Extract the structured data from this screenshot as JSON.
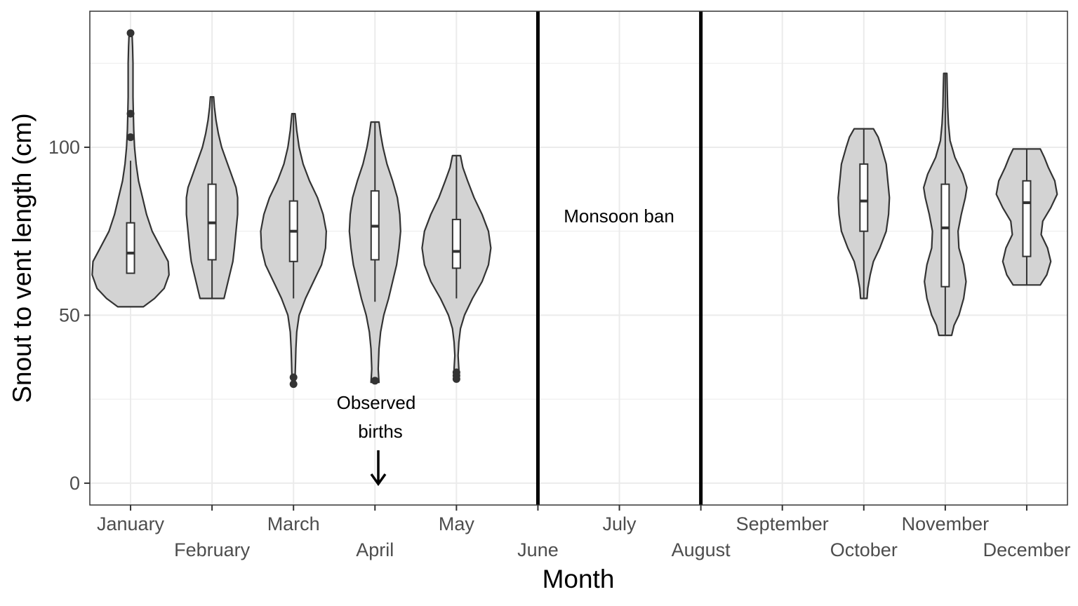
{
  "chart_data": {
    "type": "violin",
    "title": "",
    "xlabel": "Month",
    "ylabel": "Snout to vent length (cm)",
    "ylim": [
      -6.5,
      140.5
    ],
    "yticks": [
      0,
      50,
      100
    ],
    "grid": true,
    "categories": [
      "January",
      "February",
      "March",
      "April",
      "May",
      "June",
      "July",
      "August",
      "September",
      "October",
      "November",
      "December"
    ],
    "violin_fill": "#d3d3d3",
    "outline_color": "#333333",
    "months": [
      {
        "name": "January",
        "min": 52.5,
        "max": 133,
        "whisker_low": 62.5,
        "q1": 62.5,
        "median": 68.5,
        "q3": 77.5,
        "whisker_high": 96,
        "outliers": [
          103,
          110,
          134
        ],
        "density": [
          [
            52.5,
            0.16
          ],
          [
            55,
            0.3
          ],
          [
            58,
            0.42
          ],
          [
            62,
            0.48
          ],
          [
            66,
            0.47
          ],
          [
            70,
            0.38
          ],
          [
            75,
            0.27
          ],
          [
            80,
            0.2
          ],
          [
            85,
            0.15
          ],
          [
            90,
            0.1
          ],
          [
            95,
            0.07
          ],
          [
            100,
            0.05
          ],
          [
            105,
            0.04
          ],
          [
            110,
            0.035
          ],
          [
            115,
            0.03
          ],
          [
            120,
            0.03
          ],
          [
            125,
            0.03
          ],
          [
            130,
            0.025
          ],
          [
            133,
            0.02
          ]
        ]
      },
      {
        "name": "February",
        "min": 55,
        "max": 115,
        "whisker_low": 55,
        "q1": 66.5,
        "median": 77.5,
        "q3": 89,
        "whisker_high": 115,
        "outliers": [],
        "density": [
          [
            55,
            0.15
          ],
          [
            58,
            0.18
          ],
          [
            62,
            0.22
          ],
          [
            66,
            0.26
          ],
          [
            70,
            0.28
          ],
          [
            75,
            0.3
          ],
          [
            80,
            0.32
          ],
          [
            85,
            0.32
          ],
          [
            88,
            0.3
          ],
          [
            92,
            0.24
          ],
          [
            96,
            0.18
          ],
          [
            100,
            0.12
          ],
          [
            104,
            0.08
          ],
          [
            108,
            0.05
          ],
          [
            112,
            0.03
          ],
          [
            115,
            0.02
          ]
        ]
      },
      {
        "name": "March",
        "min": 29,
        "max": 110,
        "whisker_low": 55,
        "q1": 66,
        "median": 75,
        "q3": 84,
        "whisker_high": 110,
        "outliers": [
          29.5,
          31.5
        ],
        "density": [
          [
            29,
            0.02
          ],
          [
            32,
            0.02
          ],
          [
            36,
            0.025
          ],
          [
            40,
            0.03
          ],
          [
            45,
            0.04
          ],
          [
            50,
            0.07
          ],
          [
            55,
            0.15
          ],
          [
            60,
            0.25
          ],
          [
            65,
            0.35
          ],
          [
            70,
            0.4
          ],
          [
            75,
            0.41
          ],
          [
            80,
            0.37
          ],
          [
            85,
            0.3
          ],
          [
            90,
            0.2
          ],
          [
            95,
            0.12
          ],
          [
            100,
            0.07
          ],
          [
            105,
            0.04
          ],
          [
            110,
            0.02
          ]
        ]
      },
      {
        "name": "April",
        "min": 30,
        "max": 107.5,
        "whisker_low": 54,
        "q1": 66.5,
        "median": 76.5,
        "q3": 87,
        "whisker_high": 107.5,
        "outliers": [
          30.5
        ],
        "density": [
          [
            30,
            0.05
          ],
          [
            34,
            0.04
          ],
          [
            40,
            0.05
          ],
          [
            45,
            0.07
          ],
          [
            50,
            0.11
          ],
          [
            55,
            0.17
          ],
          [
            60,
            0.22
          ],
          [
            65,
            0.27
          ],
          [
            70,
            0.3
          ],
          [
            75,
            0.32
          ],
          [
            80,
            0.31
          ],
          [
            85,
            0.28
          ],
          [
            90,
            0.22
          ],
          [
            95,
            0.15
          ],
          [
            100,
            0.1
          ],
          [
            104,
            0.07
          ],
          [
            107.5,
            0.05
          ]
        ]
      },
      {
        "name": "May",
        "min": 30.5,
        "max": 97.5,
        "whisker_low": 55,
        "q1": 64,
        "median": 69,
        "q3": 78.5,
        "whisker_high": 97.5,
        "outliers": [
          31,
          32,
          33
        ],
        "density": [
          [
            30.5,
            0.03
          ],
          [
            34,
            0.03
          ],
          [
            38,
            0.02
          ],
          [
            42,
            0.03
          ],
          [
            46,
            0.05
          ],
          [
            50,
            0.1
          ],
          [
            55,
            0.2
          ],
          [
            60,
            0.32
          ],
          [
            65,
            0.4
          ],
          [
            70,
            0.43
          ],
          [
            75,
            0.4
          ],
          [
            80,
            0.32
          ],
          [
            85,
            0.22
          ],
          [
            90,
            0.14
          ],
          [
            94,
            0.08
          ],
          [
            97.5,
            0.05
          ]
        ]
      },
      {
        "name": "October",
        "min": 55,
        "max": 105.5,
        "whisker_low": 55,
        "q1": 75,
        "median": 84,
        "q3": 95,
        "whisker_high": 105.5,
        "outliers": [],
        "density": [
          [
            55,
            0.04
          ],
          [
            58,
            0.05
          ],
          [
            62,
            0.08
          ],
          [
            66,
            0.12
          ],
          [
            70,
            0.2
          ],
          [
            75,
            0.28
          ],
          [
            80,
            0.31
          ],
          [
            85,
            0.32
          ],
          [
            90,
            0.3
          ],
          [
            95,
            0.28
          ],
          [
            100,
            0.22
          ],
          [
            103,
            0.18
          ],
          [
            105.5,
            0.12
          ]
        ]
      },
      {
        "name": "November",
        "min": 44,
        "max": 122,
        "whisker_low": 44,
        "q1": 58.5,
        "median": 76,
        "q3": 89,
        "whisker_high": 122,
        "outliers": [],
        "density": [
          [
            44,
            0.08
          ],
          [
            47,
            0.11
          ],
          [
            50,
            0.17
          ],
          [
            55,
            0.23
          ],
          [
            60,
            0.26
          ],
          [
            65,
            0.23
          ],
          [
            70,
            0.17
          ],
          [
            75,
            0.16
          ],
          [
            80,
            0.2
          ],
          [
            85,
            0.25
          ],
          [
            88,
            0.27
          ],
          [
            92,
            0.22
          ],
          [
            97,
            0.12
          ],
          [
            102,
            0.06
          ],
          [
            107,
            0.04
          ],
          [
            112,
            0.03
          ],
          [
            117,
            0.025
          ],
          [
            122,
            0.02
          ]
        ]
      },
      {
        "name": "December",
        "min": 59,
        "max": 99.5,
        "whisker_low": 59,
        "q1": 67.5,
        "median": 83.5,
        "q3": 90,
        "whisker_high": 99.5,
        "outliers": [],
        "density": [
          [
            59,
            0.17
          ],
          [
            62,
            0.25
          ],
          [
            66,
            0.3
          ],
          [
            70,
            0.26
          ],
          [
            74,
            0.18
          ],
          [
            78,
            0.2
          ],
          [
            82,
            0.3
          ],
          [
            86,
            0.38
          ],
          [
            90,
            0.35
          ],
          [
            94,
            0.27
          ],
          [
            97,
            0.22
          ],
          [
            99.5,
            0.17
          ]
        ]
      }
    ],
    "vertical_lines": [
      "June",
      "August"
    ],
    "annotations": {
      "monsoon": "Monsoon ban",
      "births_line1": "Observed",
      "births_line2": "births"
    }
  }
}
